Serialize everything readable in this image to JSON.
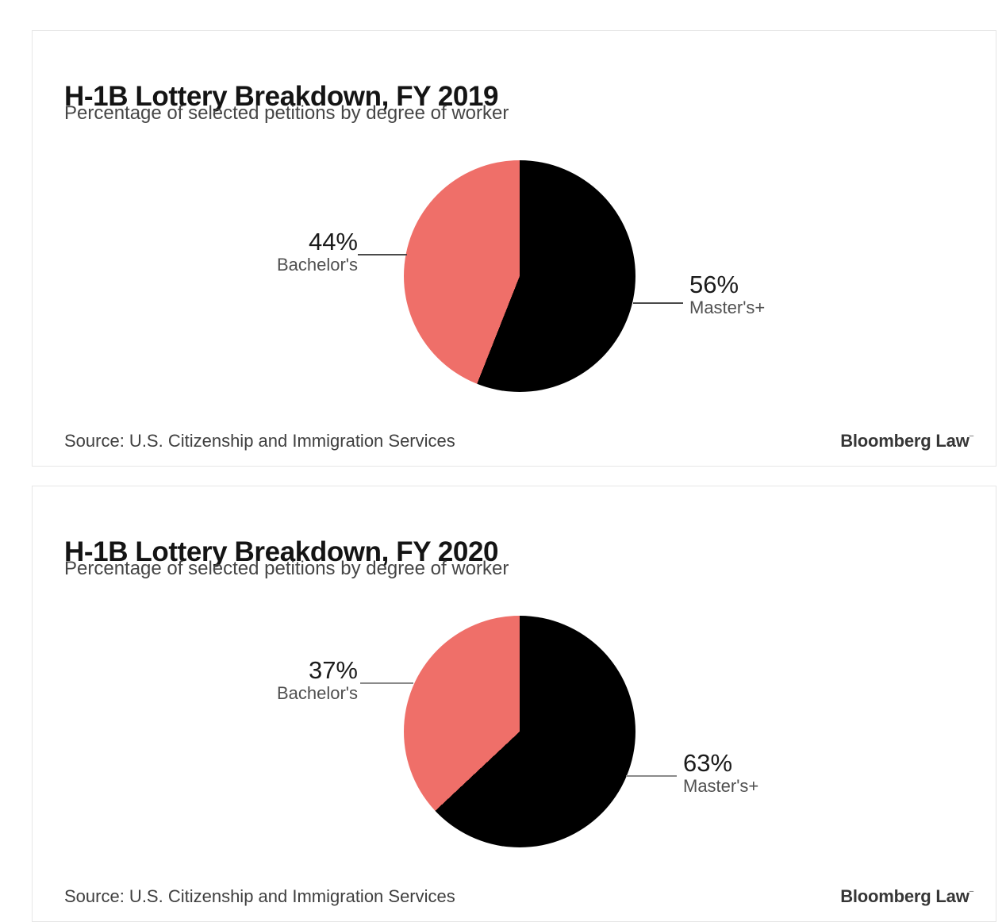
{
  "chart_data": [
    {
      "type": "pie",
      "title": "H-1B Lottery Breakdown, FY 2019",
      "subtitle": "Percentage of selected petitions by degree of worker",
      "slices": [
        {
          "label": "Master's+",
          "value": 56,
          "color": "#000000"
        },
        {
          "label": "Bachelor's",
          "value": 44,
          "color": "#ef6f69"
        }
      ],
      "start_angle": "12-o-clock",
      "direction": "clockwise",
      "legend_position": "callout-labels",
      "callouts": {
        "left": {
          "value_label": "44%",
          "name": "Bachelor's"
        },
        "right": {
          "value_label": "56%",
          "name": "Master's+"
        }
      },
      "source": "Source: U.S. Citizenship and Immigration Services",
      "brand": "Bloomberg Law",
      "brand_mark": "–"
    },
    {
      "type": "pie",
      "title": "H-1B Lottery Breakdown, FY 2020",
      "subtitle": "Percentage of selected petitions by degree of worker",
      "slices": [
        {
          "label": "Master's+",
          "value": 63,
          "color": "#000000"
        },
        {
          "label": "Bachelor's",
          "value": 37,
          "color": "#ef6f69"
        }
      ],
      "start_angle": "12-o-clock",
      "direction": "clockwise",
      "legend_position": "callout-labels",
      "callouts": {
        "left": {
          "value_label": "37%",
          "name": "Bachelor's"
        },
        "right": {
          "value_label": "63%",
          "name": "Master's+"
        }
      },
      "source": "Source: U.S. Citizenship and Immigration Services",
      "brand": "Bloomberg Law",
      "brand_mark": "–"
    }
  ]
}
